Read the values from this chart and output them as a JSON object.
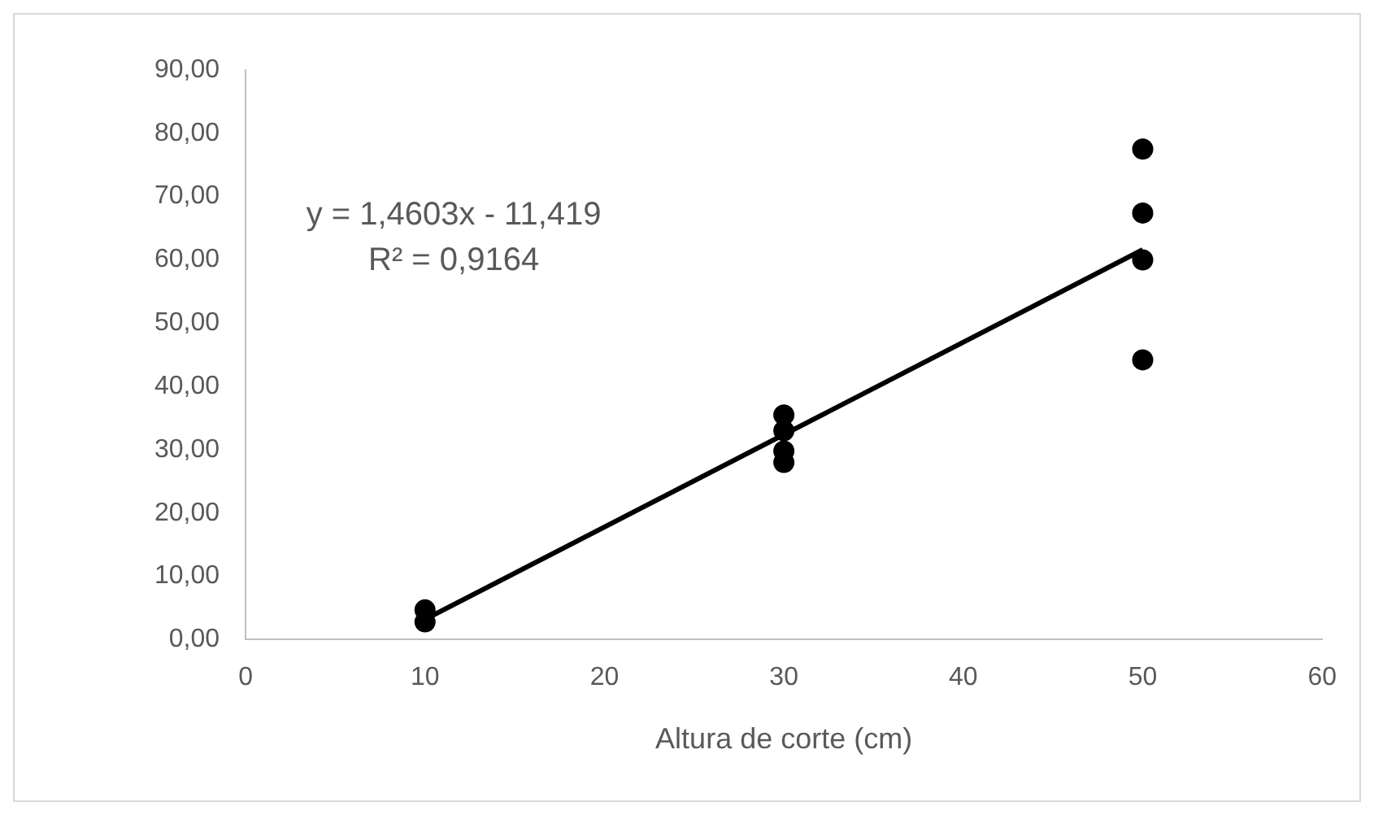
{
  "chart_data": {
    "type": "scatter",
    "xlabel": "Altura de corte (cm)",
    "marker": "circle",
    "grid": false,
    "xlim": [
      0,
      60
    ],
    "xticks": [
      0,
      10,
      20,
      30,
      40,
      50,
      60
    ],
    "ylim": [
      0,
      90
    ],
    "yticks": [
      {
        "value": 0,
        "label": "0,00"
      },
      {
        "value": 10,
        "label": "10,00"
      },
      {
        "value": 20,
        "label": "20,00"
      },
      {
        "value": 30,
        "label": "30,00"
      },
      {
        "value": 40,
        "label": "40,00"
      },
      {
        "value": 50,
        "label": "50,00"
      },
      {
        "value": 60,
        "label": "60,00"
      },
      {
        "value": 70,
        "label": "70,00"
      },
      {
        "value": 80,
        "label": "80,00"
      },
      {
        "value": 90,
        "label": "90,00"
      }
    ],
    "series": [
      {
        "color": "#000000",
        "x": [
          10,
          10,
          30,
          30,
          30,
          30,
          50,
          50,
          50,
          50
        ],
        "values": [
          4.7,
          2.8,
          35.5,
          33,
          29.8,
          28,
          77.5,
          67.4,
          60,
          44.2
        ]
      },
      {
        "type": "line",
        "color": "#000000",
        "marker": "none",
        "x": [
          10,
          50
        ],
        "values": [
          3.2,
          61.6
        ]
      }
    ],
    "annotations": [
      "y = 1,4603x - 11,419",
      "R² = 0,9164"
    ]
  }
}
